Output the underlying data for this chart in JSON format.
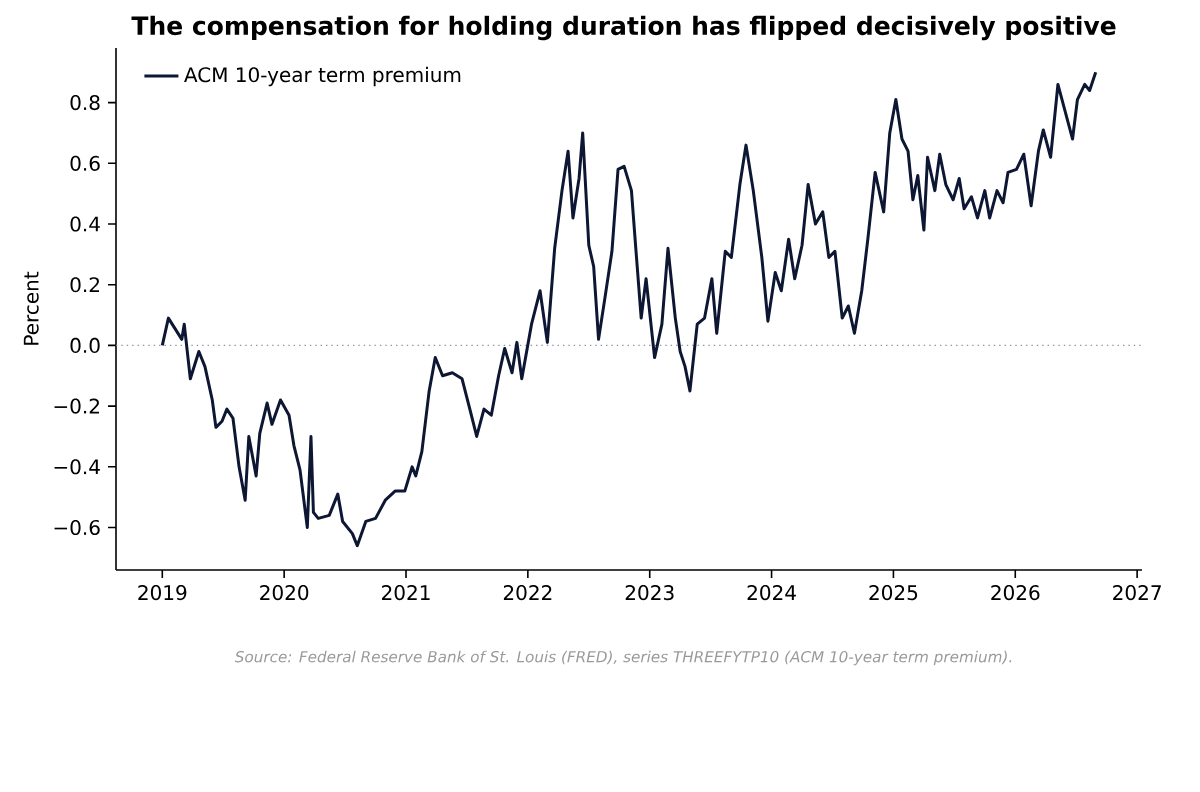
{
  "chart_data": {
    "type": "line",
    "title": "The compensation for holding duration has flipped decisively positive",
    "ylabel": "Percent",
    "x": [
      2019.0,
      2019.05,
      2019.16,
      2019.18,
      2019.23,
      2019.3,
      2019.35,
      2019.41,
      2019.44,
      2019.49,
      2019.53,
      2019.58,
      2019.63,
      2019.68,
      2019.71,
      2019.77,
      2019.8,
      2019.86,
      2019.9,
      2019.97,
      2020.04,
      2020.08,
      2020.13,
      2020.19,
      2020.22,
      2020.24,
      2020.28,
      2020.37,
      2020.44,
      2020.48,
      2020.56,
      2020.6,
      2020.67,
      2020.75,
      2020.83,
      2020.91,
      2020.99,
      2021.05,
      2021.08,
      2021.13,
      2021.19,
      2021.24,
      2021.3,
      2021.38,
      2021.46,
      2021.53,
      2021.58,
      2021.64,
      2021.7,
      2021.76,
      2021.81,
      2021.87,
      2021.91,
      2021.95,
      2022.03,
      2022.1,
      2022.16,
      2022.22,
      2022.28,
      2022.33,
      2022.37,
      2022.42,
      2022.45,
      2022.5,
      2022.54,
      2022.58,
      2022.63,
      2022.69,
      2022.74,
      2022.79,
      2022.85,
      2022.88,
      2022.93,
      2022.97,
      2023.04,
      2023.1,
      2023.15,
      2023.21,
      2023.25,
      2023.29,
      2023.33,
      2023.39,
      2023.45,
      2023.51,
      2023.55,
      2023.62,
      2023.67,
      2023.74,
      2023.79,
      2023.85,
      2023.92,
      2023.97,
      2024.03,
      2024.08,
      2024.14,
      2024.19,
      2024.25,
      2024.3,
      2024.36,
      2024.42,
      2024.47,
      2024.52,
      2024.58,
      2024.63,
      2024.68,
      2024.74,
      2024.79,
      2024.85,
      2024.92,
      2024.97,
      2025.02,
      2025.07,
      2025.12,
      2025.16,
      2025.2,
      2025.25,
      2025.28,
      2025.34,
      2025.38,
      2025.43,
      2025.49,
      2025.54,
      2025.58,
      2025.64,
      2025.69,
      2025.75,
      2025.79,
      2025.85,
      2025.9,
      2025.94,
      2026.01,
      2026.07,
      2026.13,
      2026.19,
      2026.23,
      2026.29,
      2026.35,
      2026.41,
      2026.47,
      2026.51,
      2026.57,
      2026.61,
      2026.66
    ],
    "series": [
      {
        "name": "ACM 10-year term premium",
        "color": "#0d1733",
        "values": [
          0.0,
          0.09,
          0.02,
          0.07,
          -0.11,
          -0.02,
          -0.07,
          -0.18,
          -0.27,
          -0.25,
          -0.21,
          -0.24,
          -0.4,
          -0.51,
          -0.3,
          -0.43,
          -0.29,
          -0.19,
          -0.26,
          -0.18,
          -0.23,
          -0.33,
          -0.41,
          -0.6,
          -0.3,
          -0.55,
          -0.57,
          -0.56,
          -0.49,
          -0.58,
          -0.62,
          -0.66,
          -0.58,
          -0.57,
          -0.51,
          -0.48,
          -0.48,
          -0.4,
          -0.43,
          -0.35,
          -0.15,
          -0.04,
          -0.1,
          -0.09,
          -0.11,
          -0.22,
          -0.3,
          -0.21,
          -0.23,
          -0.1,
          -0.01,
          -0.09,
          0.01,
          -0.11,
          0.07,
          0.18,
          0.01,
          0.32,
          0.51,
          0.64,
          0.42,
          0.55,
          0.7,
          0.33,
          0.26,
          0.02,
          0.15,
          0.31,
          0.58,
          0.59,
          0.51,
          0.35,
          0.09,
          0.22,
          -0.04,
          0.07,
          0.32,
          0.09,
          -0.02,
          -0.07,
          -0.15,
          0.07,
          0.09,
          0.22,
          0.04,
          0.31,
          0.29,
          0.53,
          0.66,
          0.51,
          0.29,
          0.08,
          0.24,
          0.18,
          0.35,
          0.22,
          0.33,
          0.53,
          0.4,
          0.44,
          0.29,
          0.31,
          0.09,
          0.13,
          0.04,
          0.18,
          0.35,
          0.57,
          0.44,
          0.7,
          0.81,
          0.68,
          0.64,
          0.48,
          0.56,
          0.38,
          0.62,
          0.51,
          0.63,
          0.53,
          0.48,
          0.55,
          0.45,
          0.49,
          0.42,
          0.51,
          0.42,
          0.51,
          0.47,
          0.57,
          0.58,
          0.63,
          0.46,
          0.64,
          0.71,
          0.62,
          0.86,
          0.77,
          0.68,
          0.81,
          0.86,
          0.84,
          0.9
        ]
      }
    ],
    "xlim": [
      2018.62,
      2027.04
    ],
    "xticks": [
      2019,
      2020,
      2021,
      2022,
      2023,
      2024,
      2025,
      2026,
      2027
    ],
    "ylim": [
      -0.74,
      0.98
    ],
    "yticks": [
      {
        "value": -0.6,
        "label": "−0.6"
      },
      {
        "value": -0.4,
        "label": "−0.4"
      },
      {
        "value": -0.2,
        "label": "−0.2"
      },
      {
        "value": 0,
        "label": "0.0"
      },
      {
        "value": 0.2,
        "label": "0.2"
      },
      {
        "value": 0.4,
        "label": "0.4"
      },
      {
        "value": 0.6,
        "label": "0.6"
      },
      {
        "value": 0.8,
        "label": "0.8"
      }
    ],
    "ref_lines": [
      {
        "axis": "y",
        "value": 0,
        "color": "#8a94a6",
        "line_style": "dotted"
      }
    ],
    "legend": "top left",
    "grid": false,
    "marker": "none",
    "line_style": "solid",
    "annotations": [
      "Source: Federal Reserve Bank of St. Louis (FRED), series THREEFYTP10 (ACM 10-year term premium)."
    ]
  }
}
